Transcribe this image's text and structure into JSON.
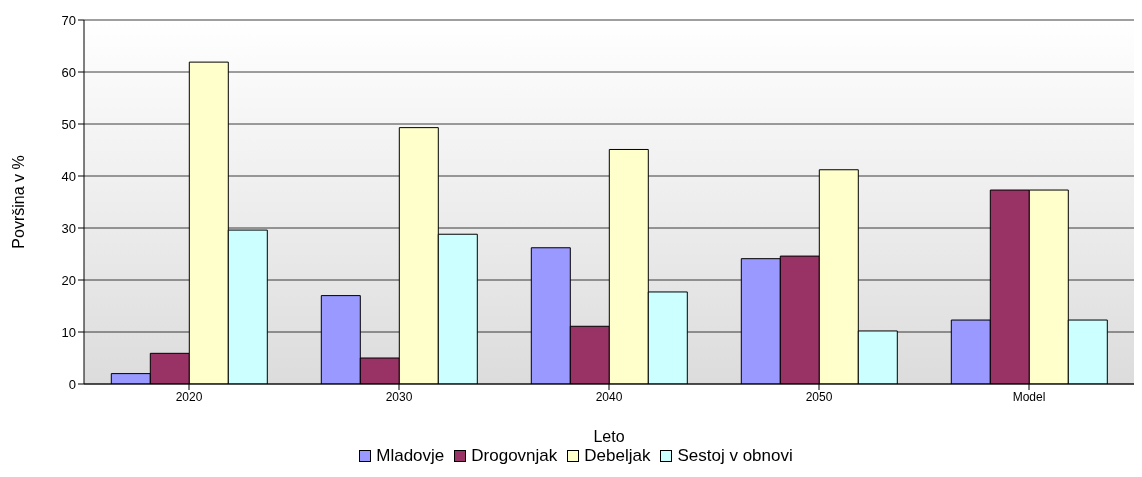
{
  "chart_data": {
    "type": "bar",
    "xlabel": "Leto",
    "ylabel": "Površina v %",
    "categories": [
      "2020",
      "2030",
      "2040",
      "2050",
      "Model"
    ],
    "series": [
      {
        "name": "Mladovje",
        "color": "#9999ff",
        "values": [
          2.0,
          17.0,
          26.2,
          24.1,
          12.3
        ]
      },
      {
        "name": "Drogovnjak",
        "color": "#993366",
        "values": [
          5.9,
          5.0,
          11.1,
          24.6,
          37.3
        ]
      },
      {
        "name": "Debeljak",
        "color": "#ffffcc",
        "values": [
          61.9,
          49.3,
          45.1,
          41.2,
          37.3
        ]
      },
      {
        "name": "Sestoj v obnovi",
        "color": "#ccffff",
        "values": [
          29.6,
          28.8,
          17.7,
          10.2,
          12.3
        ]
      }
    ],
    "ylim": [
      0,
      70
    ],
    "yticks": [
      0,
      10,
      20,
      30,
      40,
      50,
      60,
      70
    ],
    "grid": "y",
    "legend": "bottom"
  }
}
